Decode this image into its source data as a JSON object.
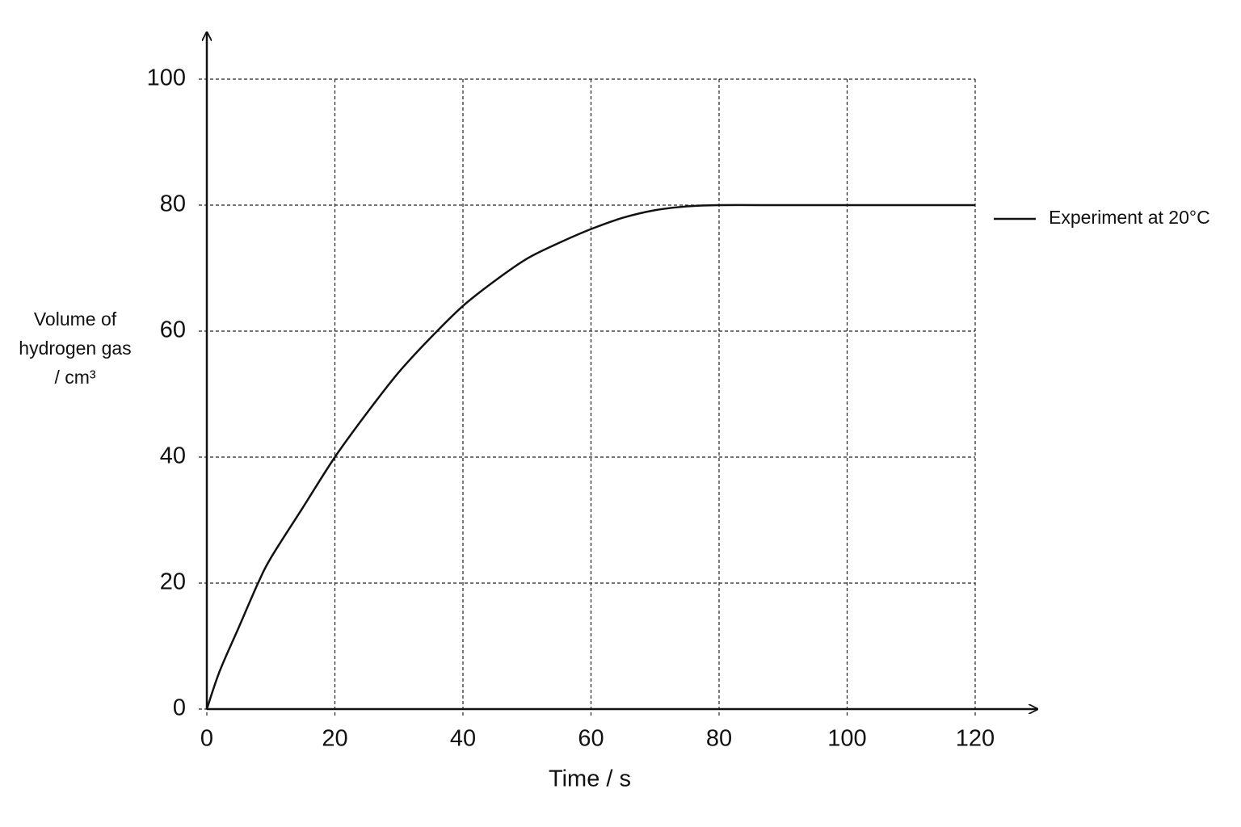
{
  "chart_data": {
    "type": "line",
    "y_label": [
      "Volume of",
      "hydrogen gas",
      "/ cm³"
    ],
    "x_label": "Time / s",
    "x": [
      0,
      2,
      5,
      8,
      10,
      15,
      20,
      25,
      30,
      35,
      40,
      45,
      50,
      55,
      60,
      65,
      70,
      75,
      80,
      90,
      100,
      110,
      120
    ],
    "series": [
      {
        "name": "Experiment at 20°C",
        "color": "#111111",
        "values": [
          0,
          6,
          13,
          20,
          24,
          32,
          40,
          47,
          53.5,
          59,
          64,
          68,
          71.5,
          74,
          76.2,
          78,
          79.2,
          79.8,
          80,
          80,
          80,
          80,
          80
        ]
      }
    ],
    "xlim": [
      0,
      120
    ],
    "ylim": [
      0,
      100
    ],
    "xticks": [
      0,
      20,
      40,
      60,
      80,
      100,
      120
    ],
    "yticks": [
      0,
      20,
      40,
      60,
      80,
      100
    ],
    "grid": true
  }
}
